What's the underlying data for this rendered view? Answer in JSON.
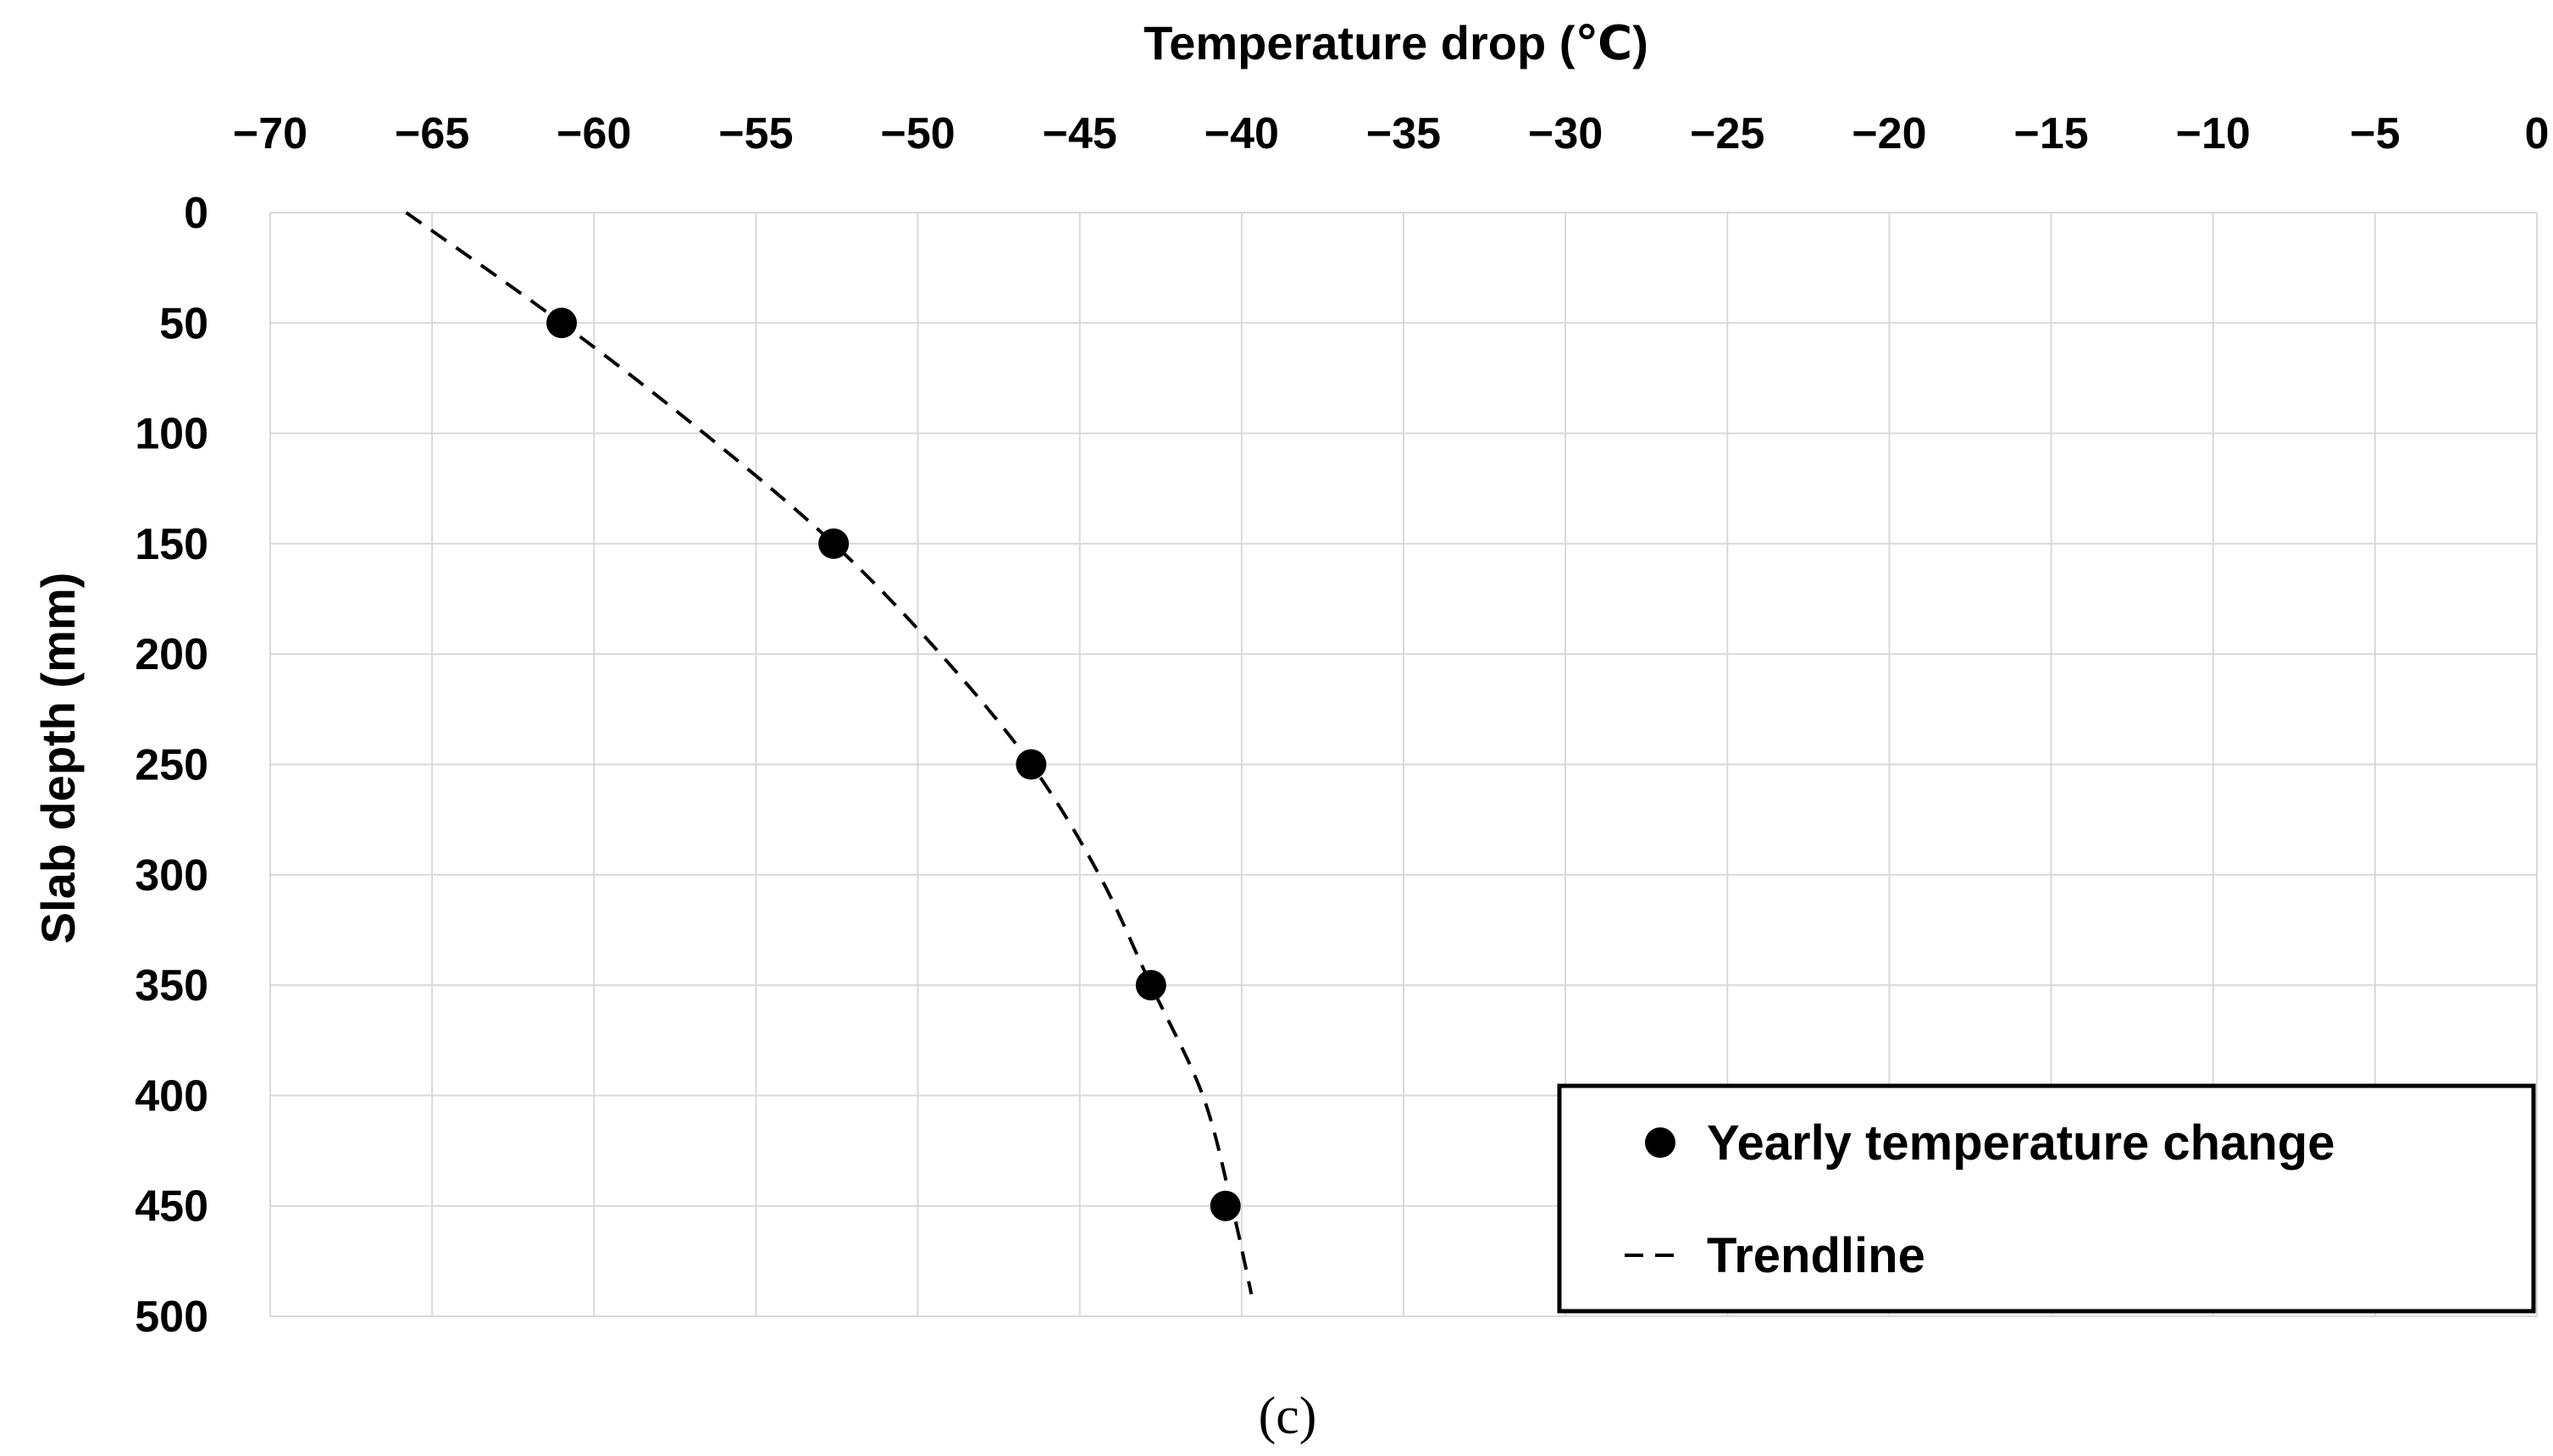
{
  "chart_data": {
    "type": "scatter",
    "title": "",
    "xlabel": "Temperature drop (℃)",
    "ylabel": "Slab depth (mm)",
    "xlim": [
      -70,
      0
    ],
    "ylim": [
      0,
      500
    ],
    "y_inverted": true,
    "x_axis_position": "top",
    "x_ticks": [
      -70,
      -65,
      -60,
      -55,
      -50,
      -45,
      -40,
      -35,
      -30,
      -25,
      -20,
      -15,
      -10,
      -5,
      0
    ],
    "x_tick_labels": [
      "−70",
      "−65",
      "−60",
      "−55",
      "−50",
      "−45",
      "−40",
      "−35",
      "−30",
      "−25",
      "−20",
      "−15",
      "−10",
      "−5",
      "0"
    ],
    "y_ticks": [
      0,
      50,
      100,
      150,
      200,
      250,
      300,
      350,
      400,
      450,
      500
    ],
    "y_tick_labels": [
      "0",
      "50",
      "100",
      "150",
      "200",
      "250",
      "300",
      "350",
      "400",
      "450",
      "500"
    ],
    "grid": true,
    "legend_position": "bottom-right",
    "series": [
      {
        "name": "Yearly temperature change",
        "type": "scatter",
        "color": "#000000",
        "points": [
          {
            "x": -61.0,
            "y": 50
          },
          {
            "x": -52.6,
            "y": 150
          },
          {
            "x": -46.5,
            "y": 250
          },
          {
            "x": -42.8,
            "y": 350
          },
          {
            "x": -40.5,
            "y": 450
          }
        ]
      },
      {
        "name": "Trendline",
        "type": "line",
        "style": "dashed",
        "color": "#000000",
        "points": [
          {
            "x": -65.8,
            "y": 0
          },
          {
            "x": -61.0,
            "y": 50
          },
          {
            "x": -56.6,
            "y": 100
          },
          {
            "x": -52.6,
            "y": 150
          },
          {
            "x": -49.3,
            "y": 200
          },
          {
            "x": -46.5,
            "y": 250
          },
          {
            "x": -44.4,
            "y": 300
          },
          {
            "x": -42.8,
            "y": 350
          },
          {
            "x": -41.2,
            "y": 400
          },
          {
            "x": -40.3,
            "y": 450
          },
          {
            "x": -39.7,
            "y": 490
          }
        ]
      }
    ],
    "caption": "(c)"
  }
}
